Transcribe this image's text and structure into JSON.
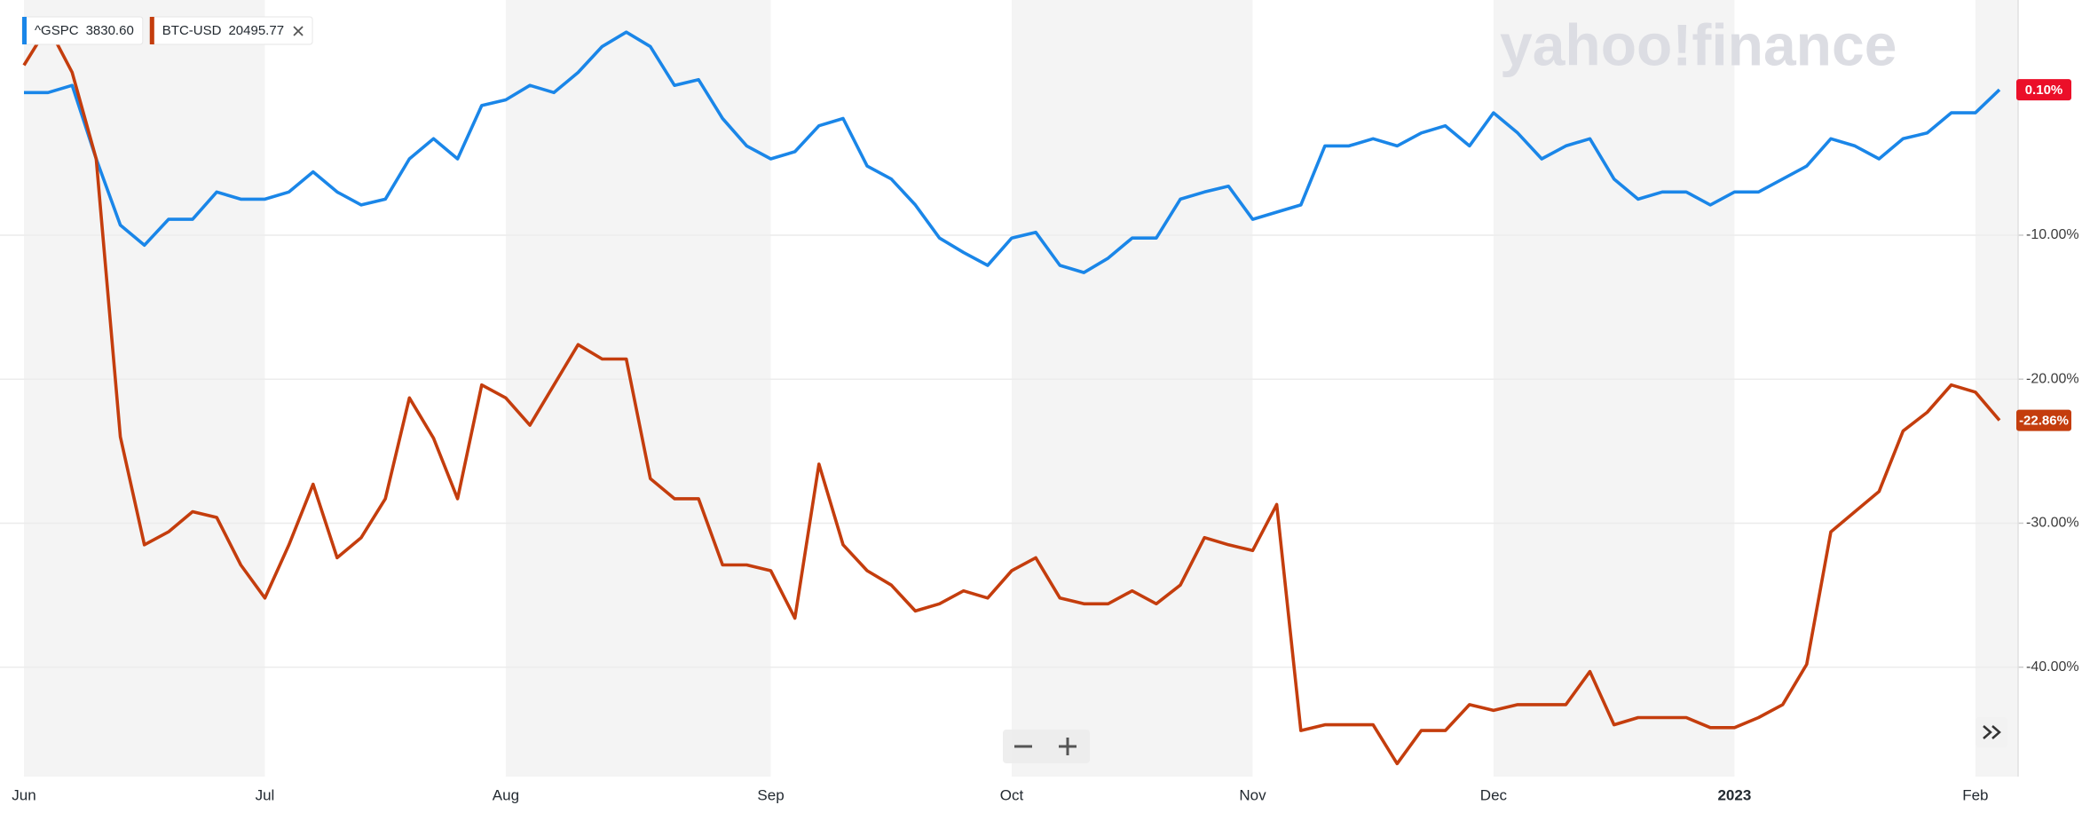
{
  "chart_data": {
    "type": "line",
    "watermark": "yahoo!finance",
    "categories": [
      "Jun",
      null,
      null,
      null,
      null,
      null,
      null,
      null,
      null,
      null,
      "Jul",
      null,
      null,
      null,
      null,
      null,
      null,
      null,
      null,
      null,
      "Aug",
      null,
      null,
      null,
      null,
      null,
      null,
      null,
      null,
      null,
      null,
      "Sep",
      null,
      null,
      null,
      null,
      null,
      null,
      null,
      null,
      null,
      "Oct",
      null,
      null,
      null,
      null,
      null,
      null,
      null,
      null,
      null,
      "Nov",
      null,
      null,
      null,
      null,
      null,
      null,
      null,
      null,
      null,
      "Dec",
      null,
      null,
      null,
      null,
      null,
      null,
      null,
      null,
      null,
      "2023",
      null,
      null,
      null,
      null,
      null,
      null,
      null,
      null,
      null,
      "Feb",
      null
    ],
    "ylim": [
      -47.6,
      5.9
    ],
    "yticks": [
      {
        "value": -10,
        "label": "-10.00%"
      },
      {
        "value": -20,
        "label": "-20.00%"
      },
      {
        "value": -30,
        "label": "-30.00%"
      },
      {
        "value": -40,
        "label": "-40.00%"
      }
    ],
    "grid": true,
    "series": [
      {
        "name": "^GSPC",
        "price": "3830.60",
        "color": "#1a86e8",
        "last_badge": "0.10%",
        "badge_color": "#eb0f29",
        "values": [
          -0.1,
          -0.1,
          0.4,
          -4.7,
          -9.3,
          -10.7,
          -8.9,
          -8.9,
          -7,
          -7.5,
          -7.5,
          -7,
          -5.6,
          -7,
          -7.9,
          -7.5,
          -4.7,
          -3.3,
          -4.7,
          -1,
          -0.6,
          0.4,
          -0.1,
          1.3,
          3.1,
          4.1,
          3.1,
          0.4,
          0.8,
          -1.9,
          -3.8,
          -4.7,
          -4.2,
          -2.4,
          -1.9,
          -5.2,
          -6.1,
          -7.9,
          -10.2,
          -11.2,
          -12.1,
          -10.2,
          -9.8,
          -12.1,
          -12.6,
          -11.6,
          -10.2,
          -10.2,
          -7.5,
          -7,
          -6.6,
          -8.9,
          -8.4,
          -7.9,
          -3.8,
          -3.8,
          -3.3,
          -3.8,
          -2.9,
          -2.4,
          -3.8,
          -1.5,
          -2.9,
          -4.7,
          -3.8,
          -3.3,
          -6.1,
          -7.5,
          -7,
          -7,
          -7.9,
          -7,
          -7,
          -6.1,
          -5.2,
          -3.3,
          -3.8,
          -4.7,
          -3.3,
          -2.9,
          -1.5,
          -1.5,
          0.1
        ]
      },
      {
        "name": "BTC-USD",
        "price": "20495.77",
        "color": "#c43d0d",
        "last_badge": "-22.86%",
        "badge_color": "#c43d0d",
        "values": [
          1.8,
          4.5,
          1.3,
          -4.7,
          -24,
          -31.5,
          -30.6,
          -29.2,
          -29.6,
          -32.9,
          -35.2,
          -31.5,
          -27.3,
          -32.4,
          -31,
          -28.3,
          -21.3,
          -24.1,
          -28.3,
          -20.4,
          -21.3,
          -23.2,
          -20.4,
          -17.6,
          -18.6,
          -18.6,
          -26.9,
          -28.3,
          -28.3,
          -32.9,
          -32.9,
          -33.3,
          -36.6,
          -25.9,
          -31.5,
          -33.3,
          -34.3,
          -36.1,
          -35.6,
          -34.7,
          -35.2,
          -33.3,
          -32.4,
          -35.2,
          -35.6,
          -35.6,
          -34.7,
          -35.6,
          -34.3,
          -31,
          -31.5,
          -31.9,
          -28.7,
          -44.4,
          -44,
          -44,
          -44,
          -46.7,
          -44.4,
          -44.4,
          -42.6,
          -43,
          -42.6,
          -42.6,
          -42.6,
          -40.3,
          -44,
          -43.5,
          -43.5,
          -43.5,
          -44.2,
          -44.2,
          -43.5,
          -42.6,
          -39.8,
          -30.6,
          -29.2,
          -27.8,
          -23.6,
          -22.3,
          -20.4,
          -20.9,
          -22.86
        ]
      }
    ]
  }
}
